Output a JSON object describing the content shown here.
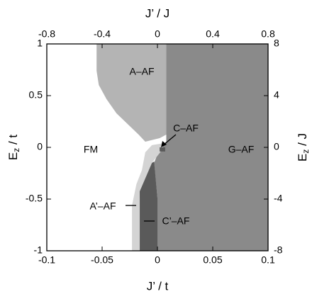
{
  "chart_data": {
    "type": "phase-diagram",
    "xlabel": "J’ / t",
    "x2label": "J’ / J",
    "ylabel": {
      "main": "E",
      "sub": "z",
      "rest": " / t"
    },
    "y2label": {
      "main": "E",
      "sub": "z",
      "rest": " / J"
    },
    "xlim": [
      -0.1,
      0.1
    ],
    "xticks": [
      -0.1,
      -0.05,
      0,
      0.05,
      0.1
    ],
    "x2lim": [
      -0.8,
      0.8
    ],
    "x2ticks": [
      -0.8,
      -0.4,
      0,
      0.4,
      0.8
    ],
    "ylim": [
      -1,
      1
    ],
    "yticks": [
      -1,
      -0.5,
      0,
      0.5,
      1
    ],
    "y2lim": [
      -8,
      8
    ],
    "y2ticks": [
      -8,
      -4,
      0,
      4,
      8
    ],
    "regions": [
      {
        "name": "FM",
        "color": "#ffffff",
        "x": [
          -0.1,
          -0.055,
          -0.055,
          -0.046,
          -0.027,
          -0.011,
          -0.023,
          -0.023,
          -0.1
        ],
        "y": [
          1,
          1,
          0.74,
          0.466,
          0.226,
          0.055,
          -0.562,
          -1,
          -1
        ]
      },
      {
        "name": "G–AF",
        "color": "#8a8a8a",
        "x": [
          0.008,
          0.1,
          0.1,
          0,
          0,
          -0.003,
          0.002,
          0.008
        ],
        "y": [
          1,
          1,
          -1,
          -1,
          -0.49,
          -0.15,
          -0.014,
          0.055
        ]
      },
      {
        "name": "A–AF",
        "color": "#b4b4b4",
        "x": [
          -0.055,
          0.008,
          0.008,
          0.002,
          -0.011,
          -0.017,
          -0.027,
          -0.037,
          -0.046,
          -0.053,
          -0.055
        ],
        "y": [
          1,
          1,
          0.123,
          0.089,
          0.055,
          0.123,
          0.226,
          0.329,
          0.466,
          0.603,
          0.74
        ]
      },
      {
        "name": "A’–AF",
        "color": "#d4d4d4",
        "x": [
          -0.023,
          -0.016,
          -0.016,
          -0.005,
          0.004,
          0.006,
          -0.005,
          -0.011,
          -0.014,
          -0.019,
          -0.023
        ],
        "y": [
          -1,
          -1,
          -0.425,
          -0.151,
          -0.027,
          0.041,
          0.021,
          -0.048,
          -0.219,
          -0.356,
          -0.562
        ]
      },
      {
        "name": "C’–AF",
        "color": "#5a5a5a",
        "x": [
          -0.016,
          0,
          0,
          -0.003,
          -0.005,
          -0.016
        ],
        "y": [
          -1,
          -1,
          -0.49,
          -0.137,
          -0.151,
          -0.425
        ]
      },
      {
        "name": "C–AF",
        "color": "#5a5a5a",
        "x": [
          0.002,
          0.007,
          0.007,
          0.002
        ],
        "y": [
          0,
          0,
          -0.04,
          -0.04
        ]
      }
    ]
  }
}
